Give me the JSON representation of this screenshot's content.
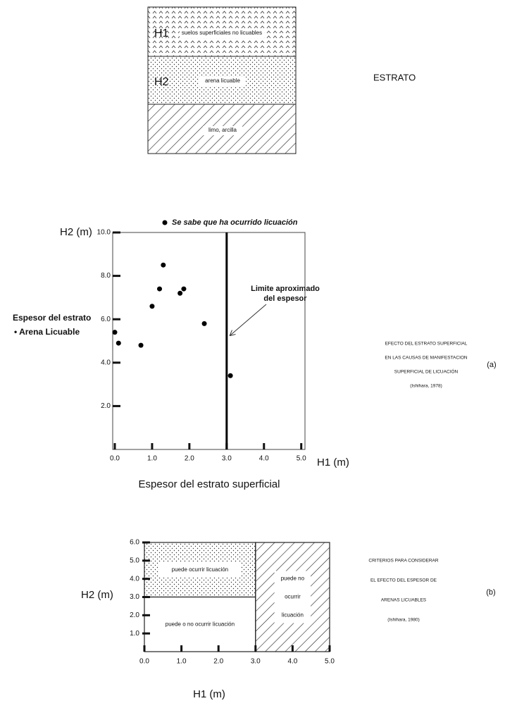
{
  "diagram": {
    "title": "ESTRATO",
    "layers": [
      {
        "name": "H1",
        "label": "suelos superficiales no licuables"
      },
      {
        "name": "H2",
        "label": "arena licuable"
      },
      {
        "label": "limo, arcilla"
      }
    ]
  },
  "chart_data": [
    {
      "type": "scatter",
      "legend": "Se sabe que ha ocurrido licuación",
      "y_label": "H2 (m)",
      "x_label": "H1 (m)",
      "x_title": "Espesor del estrato superficial",
      "y_title": [
        "Espesor del estrato",
        "• Arena Licuable"
      ],
      "x": [
        0.0,
        0.1,
        0.7,
        1.0,
        1.2,
        1.3,
        1.75,
        1.85,
        2.4,
        3.1
      ],
      "y": [
        5.4,
        4.9,
        4.8,
        6.6,
        7.4,
        8.5,
        7.2,
        7.4,
        5.8,
        3.4
      ],
      "color": "#000000",
      "xlim": [
        0,
        5.1
      ],
      "ylim": [
        0,
        10
      ],
      "xticks": [
        {
          "value": 0,
          "label": "0.0"
        },
        {
          "value": 1,
          "label": "1.0"
        },
        {
          "value": 2,
          "label": "2.0"
        },
        {
          "value": 3,
          "label": "3.0"
        },
        {
          "value": 4,
          "label": "4.0"
        },
        {
          "value": 5,
          "label": "5.0"
        }
      ],
      "yticks": [
        {
          "value": 2,
          "label": "2.0"
        },
        {
          "value": 4,
          "label": "4.0"
        },
        {
          "value": 6,
          "label": "6.0"
        },
        {
          "value": 8,
          "label": "8.0"
        },
        {
          "value": 10,
          "label": "10.0"
        }
      ],
      "vline": {
        "x": 3,
        "label": [
          "Limite aproximado",
          "del espesor"
        ]
      },
      "caption": [
        "EFECTO DEL ESTRATO SUPERFICIAL",
        "EN LAS CAUSAS DE MANIFESTACION",
        "SUPERFICIAL DE LICUACIÓN",
        "(Ishihara, 1978)"
      ],
      "panel": "(a)"
    },
    {
      "type": "region",
      "y_label": "H2 (m)",
      "x_label": "H1 (m)",
      "regions": [
        {
          "label": [
            "puede ocurrir licuación"
          ],
          "x": [
            0,
            3
          ],
          "y": [
            3,
            6
          ],
          "fill": "dots"
        },
        {
          "label": [
            "puede o no ocurrir licuación"
          ],
          "x": [
            0,
            3
          ],
          "y": [
            0,
            3
          ],
          "fill": "none"
        },
        {
          "label": [
            "puede no",
            "ocurrir",
            "licuación"
          ],
          "x": [
            3,
            5
          ],
          "y": [
            0,
            6
          ],
          "fill": "hatch"
        }
      ],
      "xlim": [
        0,
        5
      ],
      "ylim": [
        0,
        6
      ],
      "xticks": [
        {
          "value": 0,
          "label": "0.0"
        },
        {
          "value": 1,
          "label": "1.0"
        },
        {
          "value": 2,
          "label": "2.0"
        },
        {
          "value": 3,
          "label": "3.0"
        },
        {
          "value": 4,
          "label": "4.0"
        },
        {
          "value": 5,
          "label": "5.0"
        }
      ],
      "yticks": [
        {
          "value": 1,
          "label": "1.0"
        },
        {
          "value": 2,
          "label": "2.0"
        },
        {
          "value": 3,
          "label": "3.0"
        },
        {
          "value": 4,
          "label": "4.0"
        },
        {
          "value": 5,
          "label": "5.0"
        },
        {
          "value": 6,
          "label": "6.0"
        }
      ],
      "caption": [
        "CRITERIOS PARA CONSIDERAR",
        "EL EFECTO DEL ESPESOR DE",
        "ARENAS LICUABLES",
        "(Ishihara, 1980)"
      ],
      "panel": "(b)"
    }
  ]
}
